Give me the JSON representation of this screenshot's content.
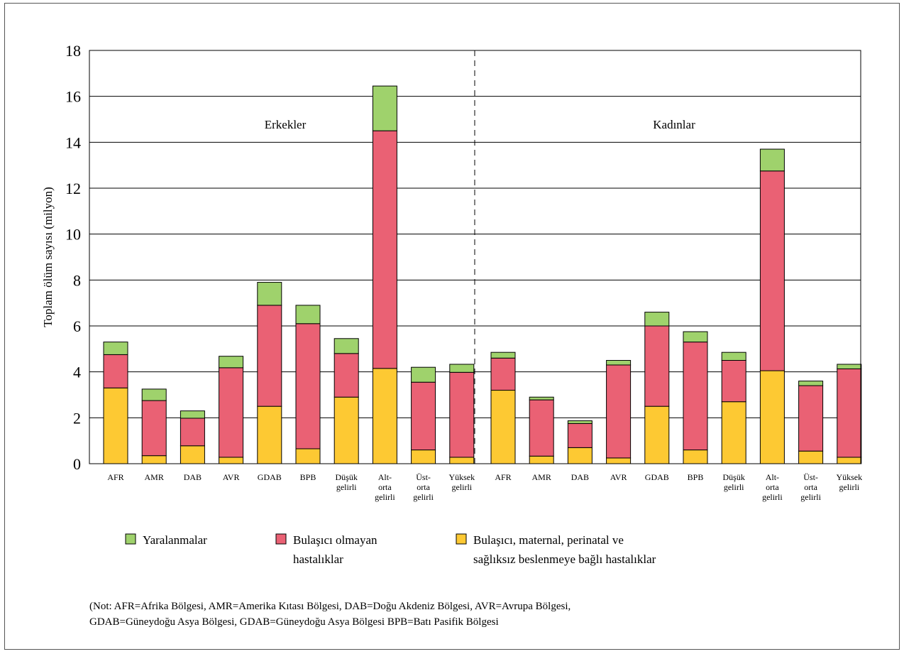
{
  "chart_data": {
    "type": "bar",
    "stacked": true,
    "ylabel": "Toplam ölüm sayısı (milyon)",
    "ylim": [
      0,
      18
    ],
    "yticks": [
      "0",
      "2",
      "4",
      "6",
      "8",
      "10",
      "12",
      "14",
      "16",
      "18"
    ],
    "grid": true,
    "legend_position": "bottom",
    "panels": [
      {
        "label": "Erkekler",
        "categories": [
          [
            "AFR"
          ],
          [
            "AMR"
          ],
          [
            "DAB"
          ],
          [
            "AVR"
          ],
          [
            "GDAB"
          ],
          [
            "BPB"
          ],
          [
            "Düşük",
            "gelirli"
          ],
          [
            "Alt-",
            "orta",
            "gelirli"
          ],
          [
            "Üst-",
            "orta",
            "gelirli"
          ],
          [
            "Yüksek",
            "gelirli"
          ]
        ],
        "series": [
          {
            "key": "communicable",
            "values": [
              3.3,
              0.35,
              0.78,
              0.28,
              2.5,
              0.65,
              2.9,
              4.15,
              0.6,
              0.28
            ]
          },
          {
            "key": "noncommunicable",
            "values": [
              1.45,
              2.4,
              1.2,
              3.9,
              4.4,
              5.45,
              1.9,
              10.35,
              2.95,
              3.7
            ]
          },
          {
            "key": "injuries",
            "values": [
              0.55,
              0.5,
              0.32,
              0.5,
              1.0,
              0.8,
              0.65,
              1.95,
              0.65,
              0.35
            ]
          }
        ]
      },
      {
        "label": "Kadınlar",
        "categories": [
          [
            "AFR"
          ],
          [
            "AMR"
          ],
          [
            "DAB"
          ],
          [
            "AVR"
          ],
          [
            "GDAB"
          ],
          [
            "BPB"
          ],
          [
            "Düşük",
            "gelirli"
          ],
          [
            "Alt-",
            "orta",
            "gelirli"
          ],
          [
            "Üst-",
            "orta",
            "gelirli"
          ],
          [
            "Yüksek",
            "gelirli"
          ]
        ],
        "series": [
          {
            "key": "communicable",
            "values": [
              3.2,
              0.33,
              0.7,
              0.25,
              2.5,
              0.6,
              2.7,
              4.05,
              0.55,
              0.28
            ]
          },
          {
            "key": "noncommunicable",
            "values": [
              1.4,
              2.45,
              1.05,
              4.05,
              3.5,
              4.7,
              1.8,
              8.7,
              2.85,
              3.85
            ]
          },
          {
            "key": "injuries",
            "values": [
              0.25,
              0.12,
              0.12,
              0.2,
              0.6,
              0.45,
              0.35,
              0.95,
              0.2,
              0.2
            ]
          }
        ]
      }
    ],
    "legend": [
      {
        "key": "injuries",
        "lines": [
          "Yaralanmalar"
        ]
      },
      {
        "key": "noncommunicable",
        "lines": [
          "Bulaşıcı olmayan",
          "hastalıklar"
        ]
      },
      {
        "key": "communicable",
        "lines": [
          "Bulaşıcı, maternal, perinatal ve",
          "sağlıksız beslenmeye bağlı hastalıklar"
        ]
      }
    ],
    "colors": {
      "communicable": "#fdc933",
      "noncommunicable": "#ea6174",
      "injuries": "#9fd26c",
      "grid": "#000000"
    }
  },
  "note": {
    "line1": "(Not: AFR=Afrika Bölgesi, AMR=Amerika Kıtası Bölgesi, DAB=Doğu Akdeniz Bölgesi, AVR=Avrupa Bölgesi,",
    "line2": "GDAB=Güneydoğu Asya Bölgesi, GDAB=Güneydoğu Asya Bölgesi BPB=Batı Pasifik Bölgesi"
  }
}
